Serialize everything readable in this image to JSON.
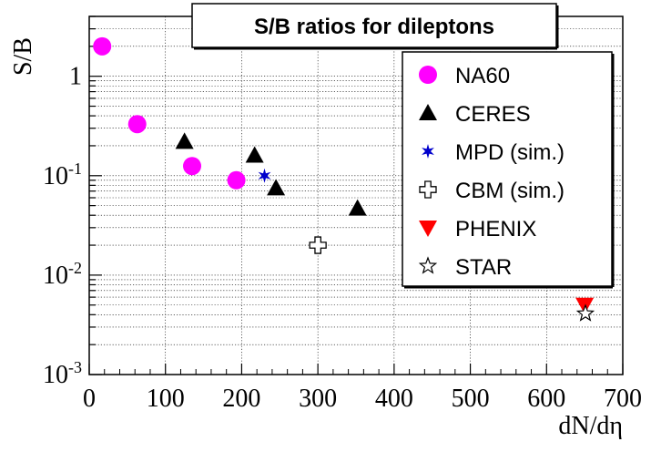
{
  "chart_data": {
    "type": "scatter",
    "title": "S/B ratios for dileptons",
    "xlabel": "dN/dη",
    "ylabel": "S/B",
    "xlim": [
      0,
      700
    ],
    "ylim": [
      0.001,
      4.0
    ],
    "yscale": "log",
    "grid": true,
    "legend_position": "right",
    "x_ticks": [
      "0",
      "100",
      "200",
      "300",
      "400",
      "500",
      "600",
      "700"
    ],
    "y_ticks": [
      {
        "base": "10",
        "exp": "-3"
      },
      {
        "base": "10",
        "exp": "-2"
      },
      {
        "base": "10",
        "exp": "-1"
      },
      {
        "base": "1",
        "exp": ""
      }
    ],
    "series": [
      {
        "name": "NA60",
        "marker": "circle",
        "color": "#ff00ff",
        "points": [
          [
            17,
            2.0
          ],
          [
            63,
            0.33
          ],
          [
            135,
            0.125
          ],
          [
            193,
            0.09
          ]
        ]
      },
      {
        "name": "CERES",
        "marker": "triangle-up",
        "color": "#000000",
        "points": [
          [
            125,
            0.22
          ],
          [
            217,
            0.16
          ],
          [
            245,
            0.075
          ],
          [
            352,
            0.047
          ]
        ]
      },
      {
        "name": "MPD (sim.)",
        "marker": "star-filled",
        "color": "#0000cc",
        "points": [
          [
            230,
            0.1
          ]
        ]
      },
      {
        "name": "CBM (sim.)",
        "marker": "open-cross",
        "color": "#000000",
        "points": [
          [
            300,
            0.02
          ]
        ]
      },
      {
        "name": "PHENIX",
        "marker": "triangle-down",
        "color": "#ff0000",
        "points": [
          [
            650,
            0.005
          ]
        ]
      },
      {
        "name": "STAR",
        "marker": "open-star",
        "color": "#000000",
        "points": [
          [
            651,
            0.0041
          ]
        ]
      }
    ]
  }
}
